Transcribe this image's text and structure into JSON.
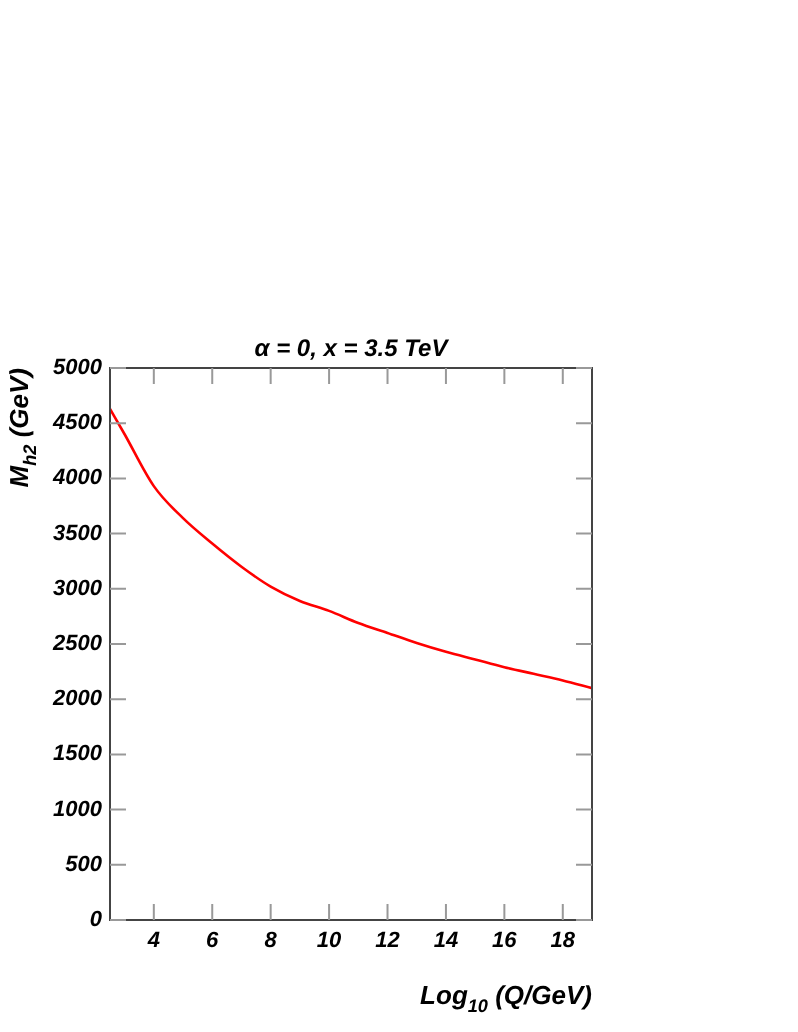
{
  "chart_data": {
    "type": "line",
    "title": "α = 0, x = 3.5 TeV",
    "xlabel": "Log$_{10}$ (Q/GeV)",
    "ylabel": "M$_{h2}$ (GeV)",
    "x": [
      2.5,
      3,
      4,
      5,
      6,
      7,
      8,
      9,
      10,
      11,
      12,
      13,
      14,
      15,
      16,
      17,
      18,
      19
    ],
    "series": [
      {
        "color": "#ff0000",
        "values": [
          4630,
          4400,
          3930,
          3640,
          3410,
          3200,
          3020,
          2890,
          2800,
          2690,
          2600,
          2510,
          2430,
          2360,
          2290,
          2230,
          2170,
          2100
        ]
      }
    ],
    "xlim": [
      2.5,
      19
    ],
    "xticks": [
      4,
      6,
      8,
      10,
      12,
      14,
      16,
      18
    ],
    "ylim": [
      0,
      5000
    ],
    "yticks": [
      0,
      500,
      1000,
      1500,
      2000,
      2500,
      3000,
      3500,
      4000,
      4500,
      5000
    ],
    "grid": false,
    "legend": false,
    "marker": "none",
    "line_style": "solid"
  }
}
